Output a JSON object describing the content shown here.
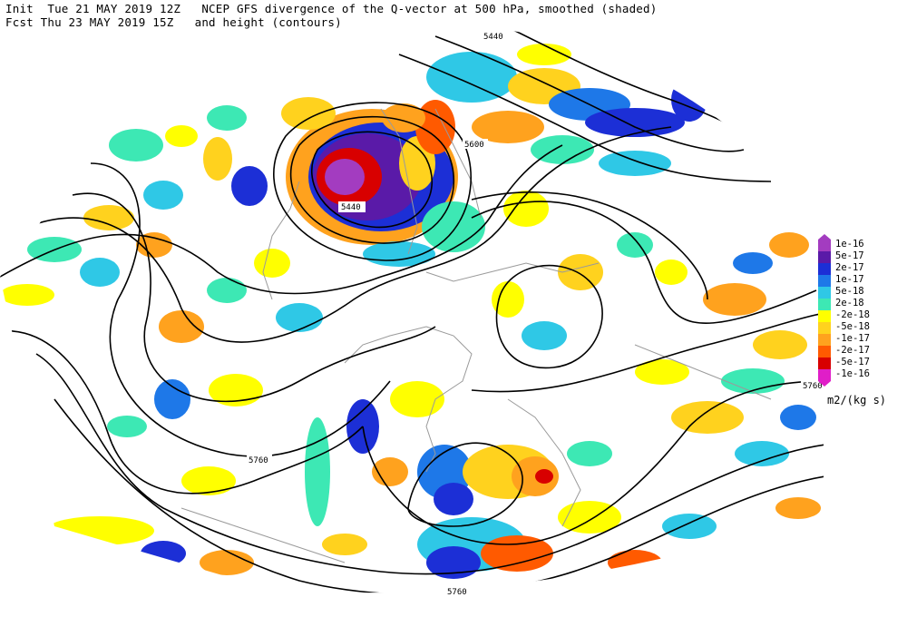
{
  "header": {
    "line1": "Init  Tue 21 MAY 2019 12Z   NCEP GFS divergence of the Q-vector at 500 hPa, smoothed (shaded)",
    "line2": "Fcst Thu 23 MAY 2019 15Z   and height (contours)"
  },
  "legend": {
    "entries": [
      {
        "label": "1e-16",
        "color": "#a33cc0"
      },
      {
        "label": "5e-17",
        "color": "#5a1aa8"
      },
      {
        "label": "2e-17",
        "color": "#1c2fd6"
      },
      {
        "label": "1e-17",
        "color": "#1e78e8"
      },
      {
        "label": "5e-18",
        "color": "#2fc8e6"
      },
      {
        "label": "2e-18",
        "color": "#3de8b4"
      },
      {
        "label": "-2e-18",
        "color": "#ffff00"
      },
      {
        "label": "-5e-18",
        "color": "#ffd21e"
      },
      {
        "label": "-1e-17",
        "color": "#ffa21e"
      },
      {
        "label": "-2e-17",
        "color": "#ff5a00"
      },
      {
        "label": "-5e-17",
        "color": "#d80000"
      },
      {
        "label": "-1e-16",
        "color": "#e01ec8"
      }
    ],
    "units": "m2/(kg s)"
  },
  "contour_labels": {
    "a": "5440",
    "b": "5600",
    "c": "5440",
    "d": "5760",
    "e": "5760",
    "f": "5760"
  }
}
